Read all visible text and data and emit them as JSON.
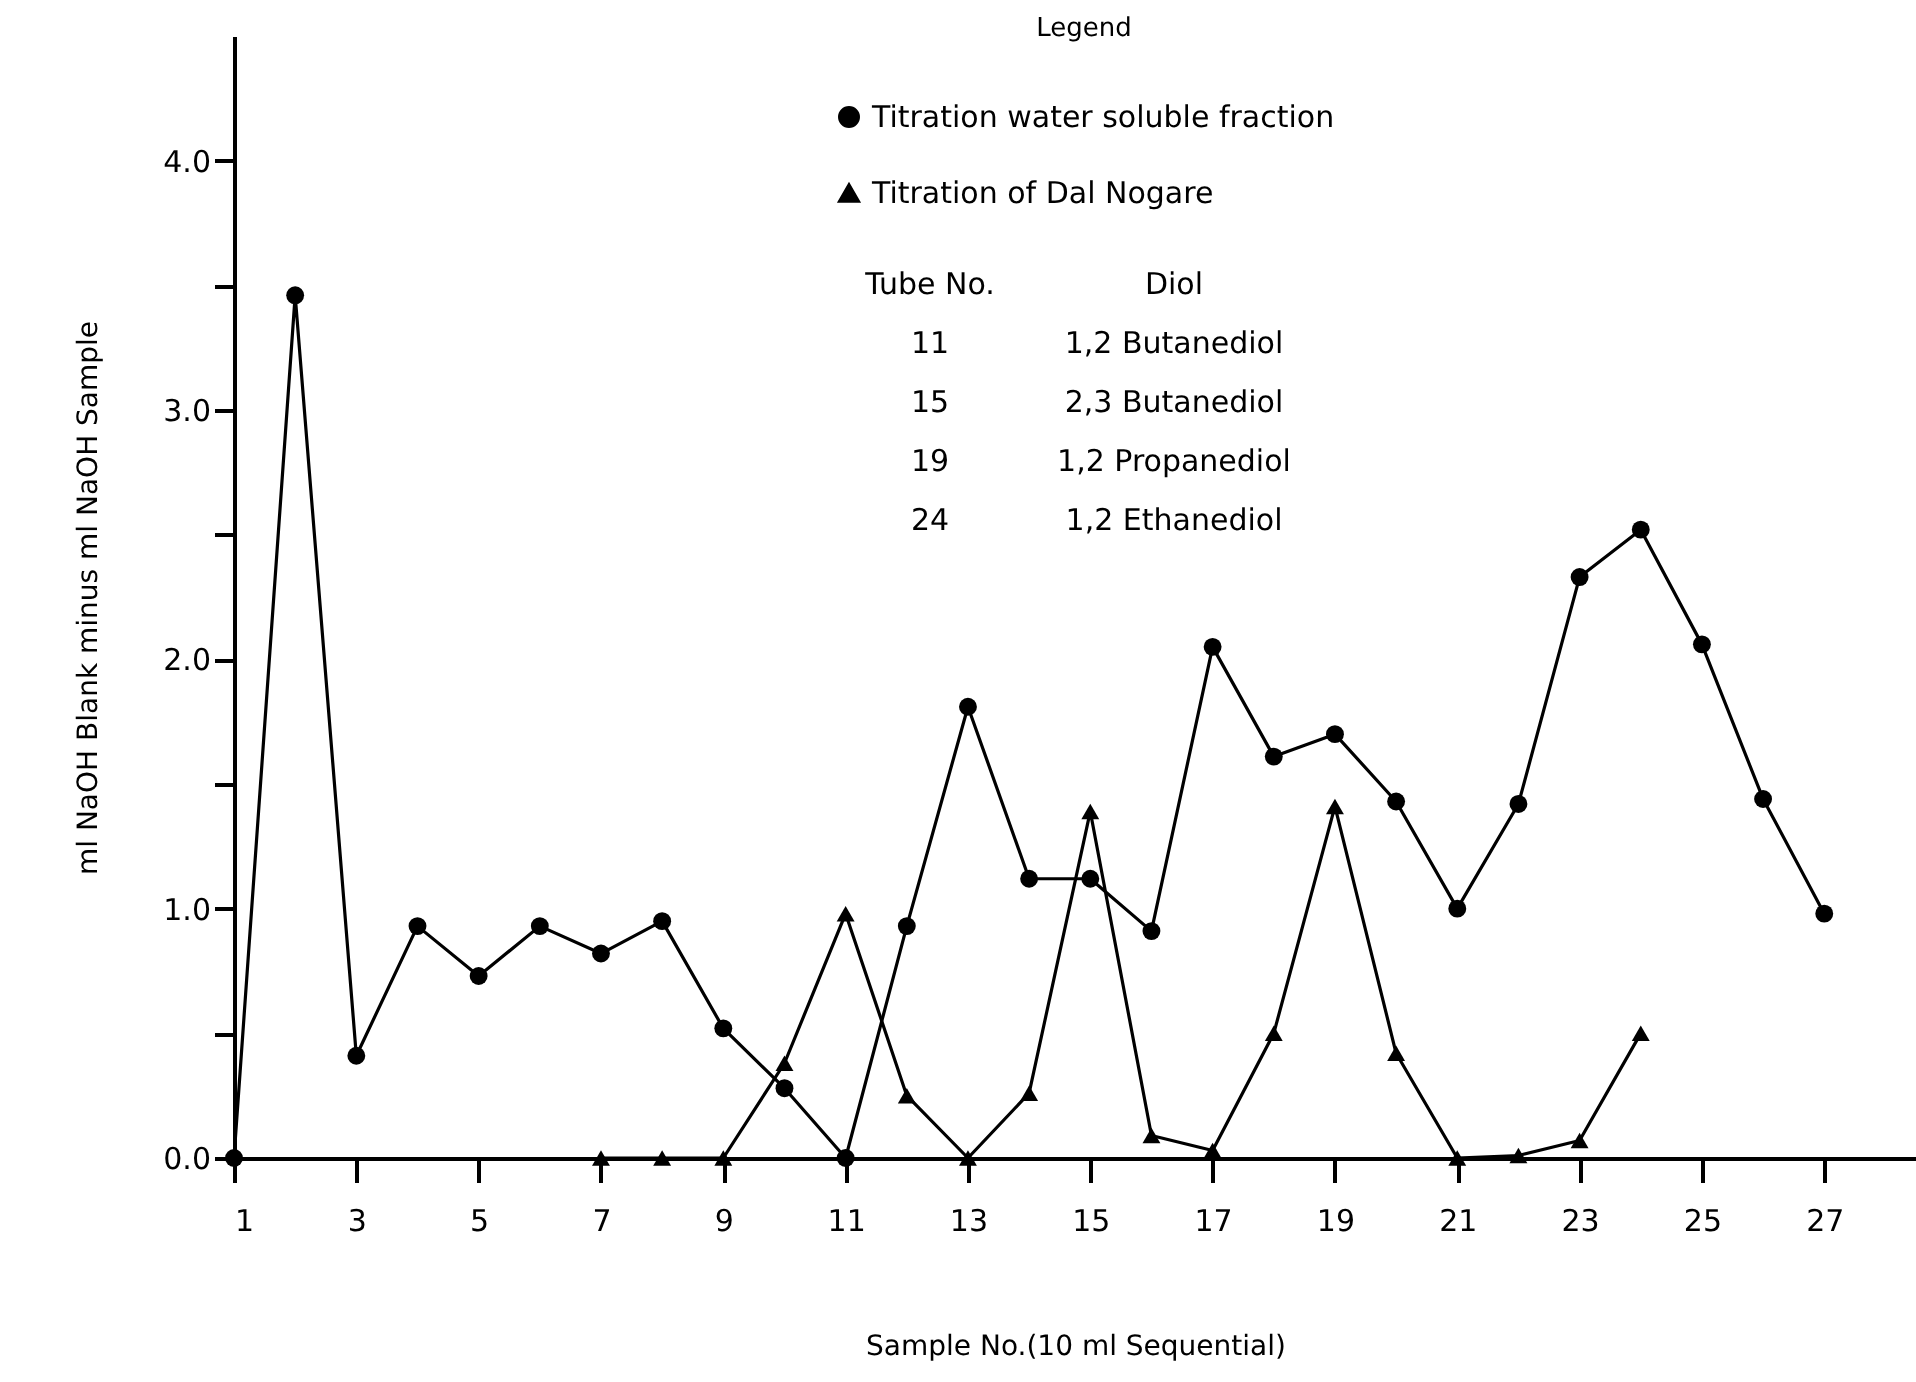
{
  "chart_data": {
    "type": "line",
    "xlabel": "Sample No.(10 ml Sequential)",
    "ylabel": "ml NaOH Blank minus ml NaOH Sample",
    "legend_title": "Legend",
    "legend": "top right",
    "grid": false,
    "line_style": "solid",
    "xlim": [
      1,
      28.5
    ],
    "xticks": [
      1,
      3,
      5,
      7,
      9,
      11,
      13,
      15,
      17,
      19,
      21,
      23,
      25,
      27
    ],
    "ylim": [
      0,
      4.5
    ],
    "yticks": [
      {
        "value": 0,
        "label": "0.0"
      },
      {
        "value": 0.5,
        "label": null
      },
      {
        "value": 1,
        "label": "1.0"
      },
      {
        "value": 1.5,
        "label": null
      },
      {
        "value": 2,
        "label": "2.0"
      },
      {
        "value": 2.5,
        "label": null
      },
      {
        "value": 3,
        "label": "3.0"
      },
      {
        "value": 3.5,
        "label": null
      },
      {
        "value": 4,
        "label": "4.0"
      }
    ],
    "series": [
      {
        "name": "Titration water soluble fraction",
        "color": "#000000",
        "marker": "circle",
        "x": [
          1,
          2,
          3,
          4,
          5,
          6,
          7,
          8,
          9,
          10,
          11,
          12,
          13,
          14,
          15,
          16,
          17,
          18,
          19,
          20,
          21,
          22,
          23,
          24,
          25,
          26,
          27
        ],
        "values": [
          0,
          3.46,
          0.41,
          0.93,
          0.73,
          0.93,
          0.82,
          0.95,
          0.52,
          0.28,
          0,
          0.93,
          1.81,
          1.12,
          1.12,
          0.91,
          2.05,
          1.61,
          1.7,
          1.43,
          1.0,
          1.42,
          2.33,
          2.52,
          2.06,
          1.44,
          0.98
        ]
      },
      {
        "name": "Titration of Dal Nogare",
        "color": "#000000",
        "marker": "triangle",
        "x": [
          7,
          8,
          9,
          10,
          11,
          12,
          13,
          14,
          15,
          16,
          17,
          18,
          19,
          20,
          21,
          22,
          23,
          24
        ],
        "values": [
          0,
          0,
          0,
          0.38,
          0.98,
          0.25,
          0,
          0.26,
          1.39,
          0.09,
          0.03,
          0.5,
          1.41,
          0.42,
          0,
          0.01,
          0.07,
          0.5
        ]
      }
    ],
    "annotations": [
      "Tube No.",
      "Diol",
      "11",
      "1,2 Butanediol",
      "15",
      "2,3 Butanediol",
      "19",
      "1,2 Propanediol",
      "24",
      "1,2 Ethanediol"
    ]
  }
}
